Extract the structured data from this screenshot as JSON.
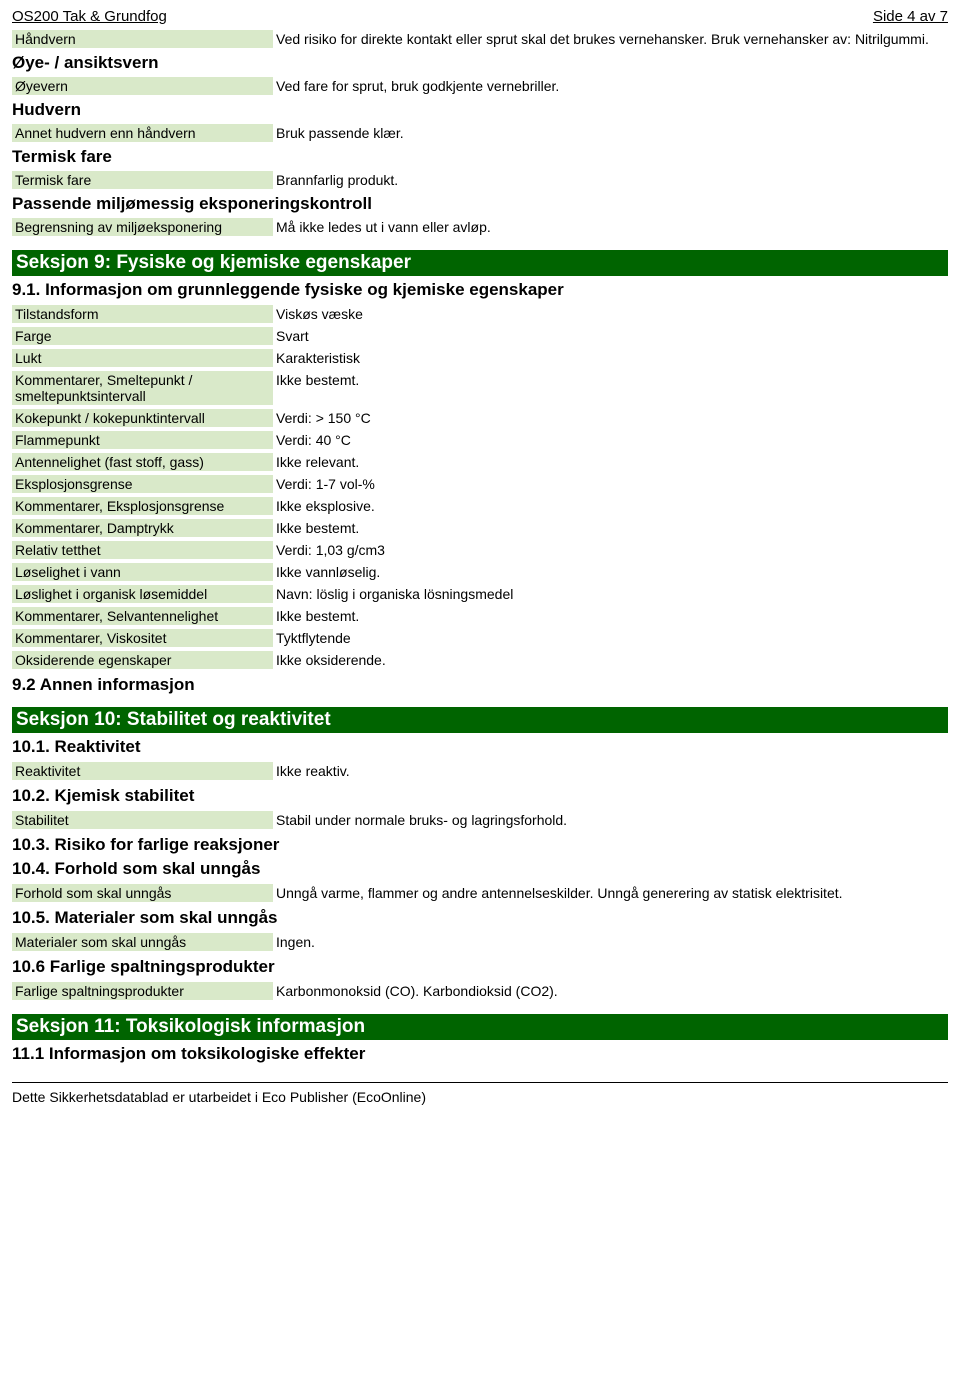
{
  "header": {
    "title": "OS200 Tak & Grundfog",
    "page": "Side 4 av 7"
  },
  "sec8": {
    "h_hand": "Håndvern",
    "v_hand": "Ved risiko for direkte kontakt eller sprut skal det brukes vernehansker. Bruk vernehansker av: Nitrilgummi.",
    "h_eyeface": "Øye- / ansiktsvern",
    "h_eye": "Øyevern",
    "v_eye": "Ved fare for sprut, bruk godkjente vernebriller.",
    "h_skin": "Hudvern",
    "h_otherskin": "Annet hudvern enn håndvern",
    "v_otherskin": "Bruk passende klær.",
    "h_thermal_head": "Termisk fare",
    "h_thermal": "Termisk fare",
    "v_thermal": "Brannfarlig produkt.",
    "h_envctrl": "Passende miljømessig eksponeringskontroll",
    "h_envlimit": "Begrensning av miljøeksponering",
    "v_envlimit": "Må ikke ledes ut i vann eller avløp."
  },
  "sec9": {
    "title": "Seksjon 9: Fysiske og kjemiske egenskaper",
    "h91": "9.1. Informasjon om grunnleggende fysiske og kjemiske egenskaper",
    "r": [
      {
        "l": "Tilstandsform",
        "v": "Viskøs væske"
      },
      {
        "l": "Farge",
        "v": "Svart"
      },
      {
        "l": "Lukt",
        "v": "Karakteristisk"
      },
      {
        "l": "Kommentarer, Smeltepunkt / smeltepunktsintervall",
        "v": "Ikke bestemt."
      },
      {
        "l": "Kokepunkt / kokepunktintervall",
        "v": "Verdi: > 150 °C"
      },
      {
        "l": "Flammepunkt",
        "v": "Verdi: 40 °C"
      },
      {
        "l": "Antennelighet (fast stoff, gass)",
        "v": "Ikke relevant."
      },
      {
        "l": "Eksplosjonsgrense",
        "v": "Verdi: 1-7 vol-%"
      },
      {
        "l": "Kommentarer, Eksplosjonsgrense",
        "v": "Ikke eksplosive."
      },
      {
        "l": "Kommentarer, Damptrykk",
        "v": "Ikke bestemt."
      },
      {
        "l": "Relativ tetthet",
        "v": "Verdi: 1,03 g/cm3"
      },
      {
        "l": "Løselighet i vann",
        "v": "Ikke vannløselig."
      },
      {
        "l": "Løslighet i organisk løsemiddel",
        "v": "Navn: löslig i organiska lösningsmedel"
      },
      {
        "l": "Kommentarer, Selvantennelighet",
        "v": "Ikke bestemt."
      },
      {
        "l": "Kommentarer, Viskositet",
        "v": "Tyktflytende"
      },
      {
        "l": "Oksiderende egenskaper",
        "v": "Ikke oksiderende."
      }
    ],
    "h92": "9.2 Annen informasjon"
  },
  "sec10": {
    "title": "Seksjon 10: Stabilitet og reaktivitet",
    "h101": "10.1. Reaktivitet",
    "r101l": "Reaktivitet",
    "r101v": "Ikke reaktiv.",
    "h102": "10.2. Kjemisk stabilitet",
    "r102l": "Stabilitet",
    "r102v": "Stabil under normale bruks- og lagringsforhold.",
    "h103": "10.3. Risiko for farlige reaksjoner",
    "h104": "10.4. Forhold som skal unngås",
    "r104l": "Forhold som skal unngås",
    "r104v": "Unngå varme, flammer og andre antennelseskilder. Unngå generering av statisk elektrisitet.",
    "h105": "10.5. Materialer som skal unngås",
    "r105l": "Materialer som skal unngås",
    "r105v": "Ingen.",
    "h106": "10.6 Farlige spaltningsprodukter",
    "r106l": "Farlige spaltningsprodukter",
    "r106v": "Karbonmonoksid (CO). Karbondioksid (CO2)."
  },
  "sec11": {
    "title": "Seksjon 11: Toksikologisk informasjon",
    "h111": "11.1 Informasjon om toksikologiske effekter"
  },
  "footer": "Dette Sikkerhetsdatablad er utarbeidet i Eco Publisher (EcoOnline)"
}
